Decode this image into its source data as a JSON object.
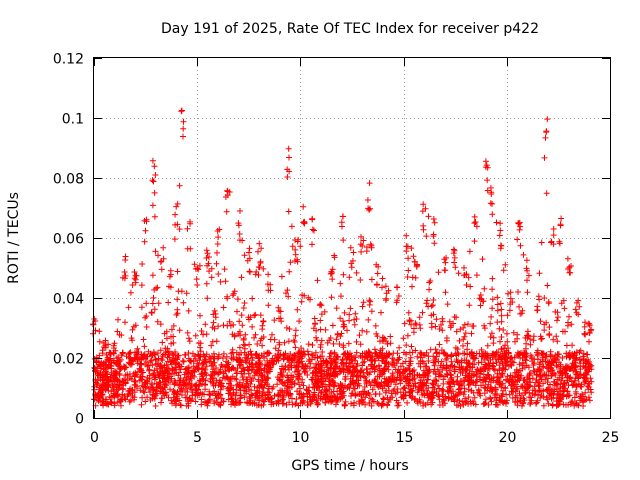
{
  "chart_data": {
    "type": "scatter",
    "title": "Day 191 of 2025, Rate Of TEC Index for receiver p422",
    "xlabel": "GPS time / hours",
    "ylabel": "ROTI / TECUs",
    "xlim": [
      0,
      25
    ],
    "ylim": [
      0,
      0.12
    ],
    "xticks": [
      0,
      5,
      10,
      15,
      20,
      25
    ],
    "xtick_labels": [
      "0",
      "5",
      "10",
      "15",
      "20",
      "25"
    ],
    "yticks": [
      0,
      0.02,
      0.04,
      0.06,
      0.08,
      0.1,
      0.12
    ],
    "ytick_labels": [
      "0",
      "0.02",
      "0.04",
      "0.06",
      "0.08",
      "0.1",
      "0.12"
    ],
    "grid": true,
    "marker": "+",
    "color": "#ff0000",
    "envelope_note_values": {
      "x": [
        0.0,
        0.5,
        1.0,
        1.5,
        2.0,
        2.5,
        2.9,
        3.3,
        3.7,
        4.0,
        4.3,
        4.6,
        5.0,
        5.5,
        6.0,
        6.5,
        7.0,
        7.5,
        8.0,
        8.5,
        9.0,
        9.4,
        9.8,
        10.2,
        10.6,
        11.0,
        11.5,
        12.0,
        12.5,
        13.0,
        13.3,
        13.7,
        14.2,
        14.7,
        15.2,
        15.6,
        16.0,
        16.5,
        17.0,
        17.5,
        18.0,
        18.5,
        19.0,
        19.3,
        19.7,
        20.2,
        20.6,
        21.0,
        21.5,
        21.9,
        22.2,
        22.6,
        23.0,
        23.4,
        23.8,
        24.0
      ],
      "y": [
        0.033,
        0.027,
        0.025,
        0.054,
        0.051,
        0.068,
        0.087,
        0.057,
        0.05,
        0.074,
        0.106,
        0.066,
        0.051,
        0.056,
        0.063,
        0.079,
        0.069,
        0.057,
        0.059,
        0.05,
        0.037,
        0.094,
        0.06,
        0.072,
        0.068,
        0.038,
        0.053,
        0.069,
        0.058,
        0.065,
        0.079,
        0.052,
        0.046,
        0.044,
        0.061,
        0.053,
        0.072,
        0.068,
        0.055,
        0.057,
        0.052,
        0.069,
        0.087,
        0.08,
        0.066,
        0.042,
        0.066,
        0.053,
        0.042,
        0.1,
        0.065,
        0.067,
        0.055,
        0.04,
        0.032,
        0.032
      ]
    }
  }
}
